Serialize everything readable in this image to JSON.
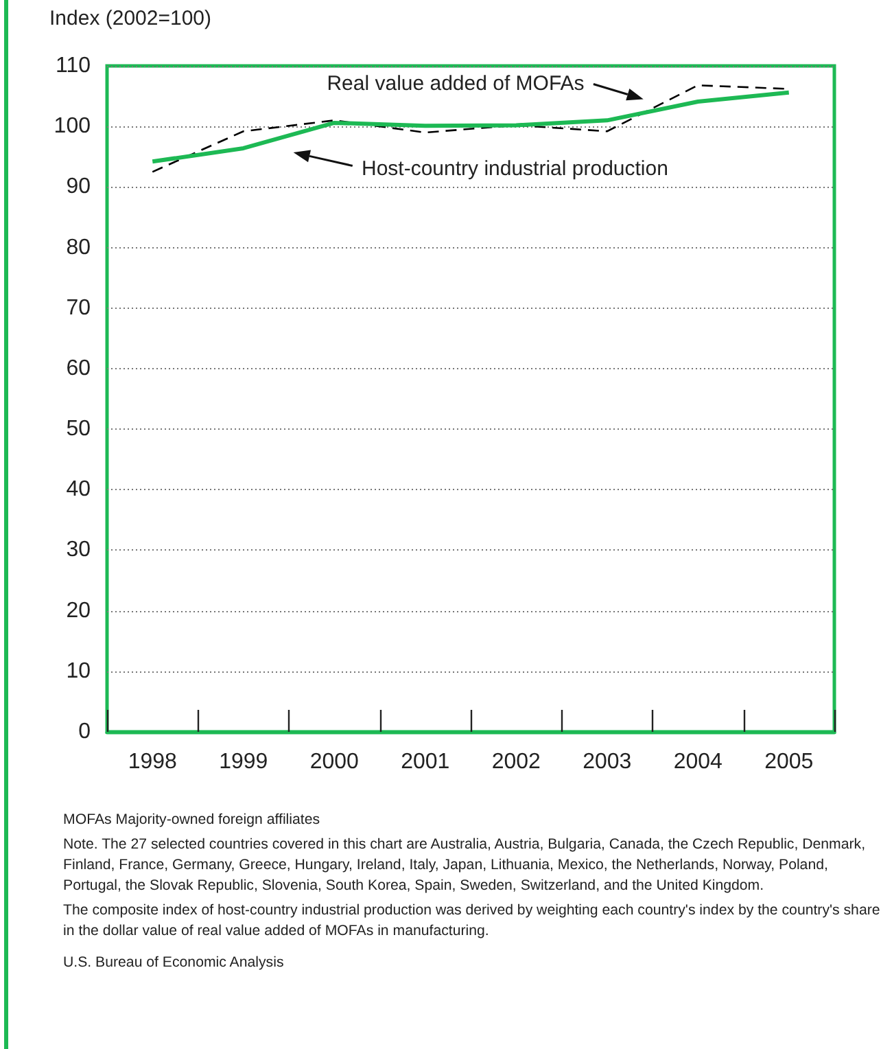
{
  "chart_data": {
    "type": "line",
    "ylabel": "Index (2002=100)",
    "categories": [
      "1998",
      "1999",
      "2000",
      "2001",
      "2002",
      "2003",
      "2004",
      "2005"
    ],
    "series": [
      {
        "name": "Real value added of MOFAs",
        "color": "#000000",
        "line_style": "dashed",
        "values": [
          92.5,
          99.2,
          101.0,
          99.0,
          100.2,
          99.2,
          106.8,
          106.2
        ]
      },
      {
        "name": "Host-country industrial production",
        "color": "#1db954",
        "line_style": "solid",
        "values": [
          94.2,
          96.4,
          100.6,
          100.1,
          100.2,
          101.0,
          104.1,
          105.6
        ]
      }
    ],
    "ylim": [
      0,
      110
    ],
    "yticks": [
      0,
      10,
      20,
      30,
      40,
      50,
      60,
      70,
      80,
      90,
      100,
      110
    ],
    "grid": "y",
    "legend": false,
    "marker": "none",
    "annotations": [
      "MOFAs Majority-owned foreign affiliates",
      "Note. The 27 selected countries covered in this chart are Australia, Austria, Bulgaria, Canada, the Czech Republic, Denmark, Finland, France, Germany, Greece, Hungary, Ireland, Italy, Japan, Lithuania, Mexico, the Netherlands, Norway, Poland, Portugal, the Slovak Republic, Slovenia, South Korea, Spain, Sweden, Switzerland, and the United Kingdom.",
      "The composite index of host-country industrial production was derived by weighting each country's index by the country's share in the dollar value of real value added of MOFAs in manufacturing.",
      "U.S. Bureau of Economic Analysis"
    ]
  }
}
